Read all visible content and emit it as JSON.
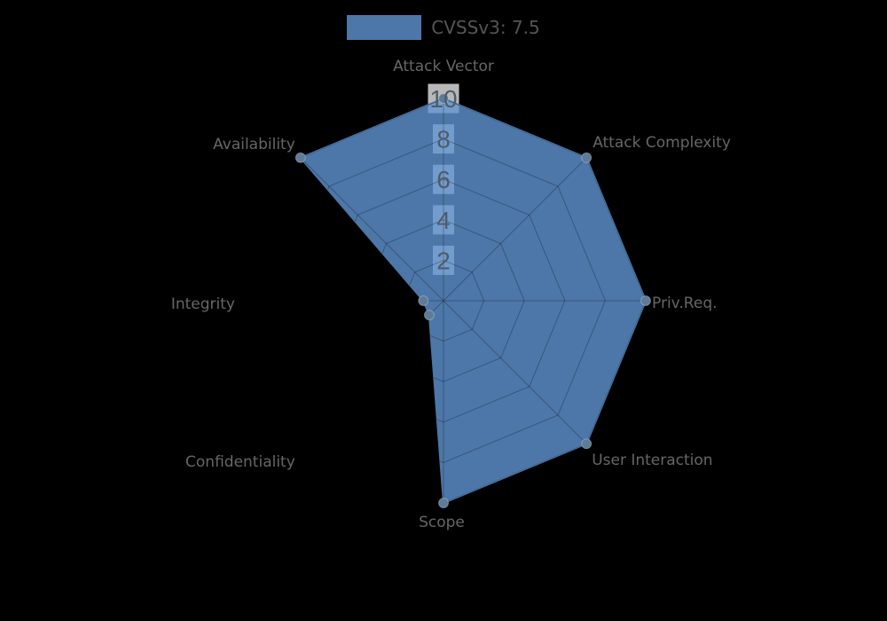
{
  "legend": {
    "label": "CVSSv3: 7.5",
    "swatch_color": "#4d77a8"
  },
  "chart_data": {
    "type": "radar",
    "title": "",
    "categories": [
      "Attack Vector",
      "Attack Complexity",
      "Priv.Req.",
      "User Interaction",
      "Scope",
      "Confidentiality",
      "Integrity",
      "Availability"
    ],
    "series": [
      {
        "name": "CVSSv3: 7.5",
        "values": [
          10,
          10,
          10,
          10,
          10,
          1,
          1,
          10
        ]
      }
    ],
    "ticks": [
      2,
      4,
      6,
      8,
      10
    ],
    "rlim": [
      0,
      10
    ],
    "grid": true,
    "legend_position": "top",
    "colors": {
      "background": "#000000",
      "series_fill": "#6095d3",
      "series_fill_opacity": 0.8,
      "series_border": "#4b77a7",
      "marker_fill": "#5e7b99",
      "marker_border": "rgba(255,255,255,0.28)",
      "grid_line": "rgba(0,0,0,0.27)",
      "tick_backdrop": "rgba(255,255,255,0.72)",
      "tick_text": "#4f5c68",
      "axis_label": "#666666",
      "legend_text": "#555555"
    }
  }
}
